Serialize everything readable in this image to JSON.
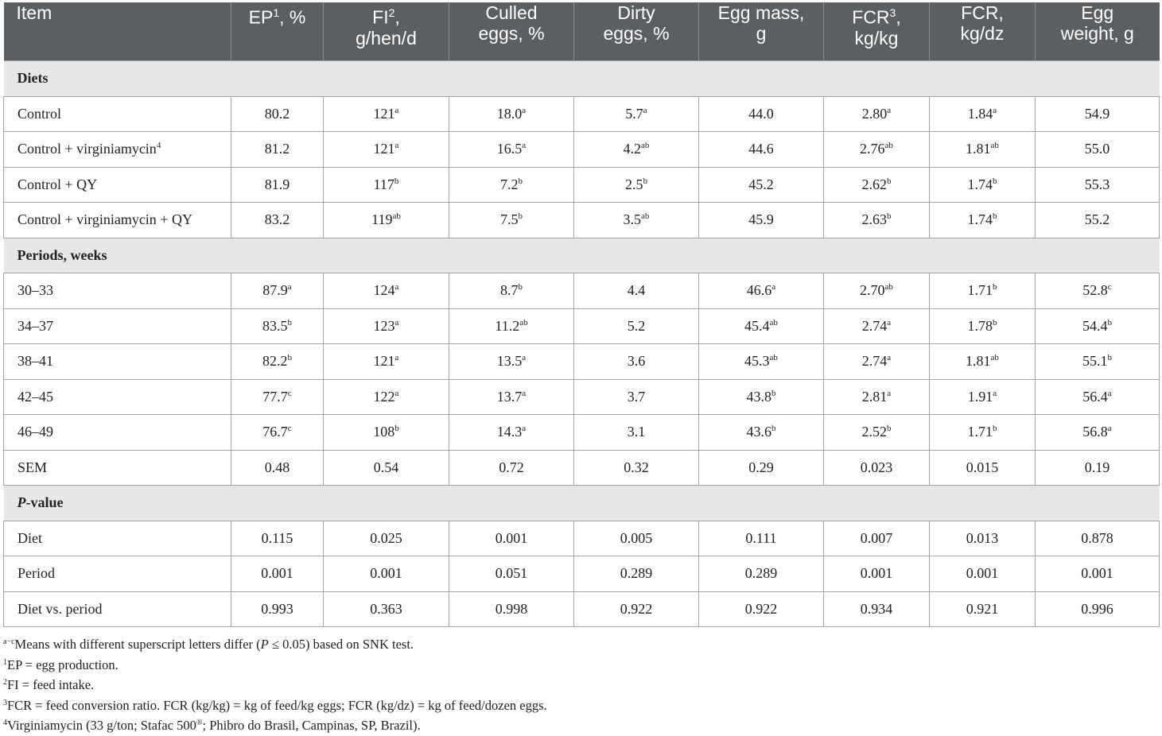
{
  "table": {
    "header": [
      {
        "text": "Item"
      },
      {
        "text": "EP",
        "sup": "1",
        "after": ", %"
      },
      {
        "text": "FI",
        "sup": "2",
        "after": ",",
        "line2": "g/hen/d"
      },
      {
        "text": "Culled",
        "line2": "eggs, %"
      },
      {
        "text": "Dirty",
        "line2": "eggs, %"
      },
      {
        "text": "Egg mass,",
        "line2": "g"
      },
      {
        "text": "FCR",
        "sup": "3",
        "after": ",",
        "line2": "kg/kg"
      },
      {
        "text": "FCR,",
        "line2": "kg/dz"
      },
      {
        "text": "Egg",
        "line2": "weight, g"
      }
    ],
    "sections": [
      {
        "title": {
          "text": "Diets"
        },
        "rows": [
          {
            "label": {
              "text": "Control"
            },
            "cells": [
              [
                "80.2"
              ],
              [
                "121",
                "a"
              ],
              [
                "18.0",
                "a"
              ],
              [
                "5.7",
                "a"
              ],
              [
                "44.0"
              ],
              [
                "2.80",
                "a"
              ],
              [
                "1.84",
                "a"
              ],
              [
                "54.9"
              ]
            ]
          },
          {
            "label": {
              "text": "Control + virginiamycin",
              "sup": "4"
            },
            "cells": [
              [
                "81.2"
              ],
              [
                "121",
                "a"
              ],
              [
                "16.5",
                "a"
              ],
              [
                "4.2",
                "ab"
              ],
              [
                "44.6"
              ],
              [
                "2.76",
                "ab"
              ],
              [
                "1.81",
                "ab"
              ],
              [
                "55.0"
              ]
            ]
          },
          {
            "label": {
              "text": "Control + QY"
            },
            "cells": [
              [
                "81.9"
              ],
              [
                "117",
                "b"
              ],
              [
                "7.2",
                "b"
              ],
              [
                "2.5",
                "b"
              ],
              [
                "45.2"
              ],
              [
                "2.62",
                "b"
              ],
              [
                "1.74",
                "b"
              ],
              [
                "55.3"
              ]
            ]
          },
          {
            "label": {
              "text": "Control + virginiamycin + QY"
            },
            "cells": [
              [
                "83.2"
              ],
              [
                "119",
                "ab"
              ],
              [
                "7.5",
                "b"
              ],
              [
                "3.5",
                "ab"
              ],
              [
                "45.9"
              ],
              [
                "2.63",
                "b"
              ],
              [
                "1.74",
                "b"
              ],
              [
                "55.2"
              ]
            ]
          }
        ]
      },
      {
        "title": {
          "text": "Periods, weeks"
        },
        "rows": [
          {
            "label": {
              "text": "30–33"
            },
            "cells": [
              [
                "87.9",
                "a"
              ],
              [
                "124",
                "a"
              ],
              [
                "8.7",
                "b"
              ],
              [
                "4.4"
              ],
              [
                "46.6",
                "a"
              ],
              [
                "2.70",
                "ab"
              ],
              [
                "1.71",
                "b"
              ],
              [
                "52.8",
                "c"
              ]
            ]
          },
          {
            "label": {
              "text": "34–37"
            },
            "cells": [
              [
                "83.5",
                "b"
              ],
              [
                "123",
                "a"
              ],
              [
                "11.2",
                "ab"
              ],
              [
                "5.2"
              ],
              [
                "45.4",
                "ab"
              ],
              [
                "2.74",
                "a"
              ],
              [
                "1.78",
                "b"
              ],
              [
                "54.4",
                "b"
              ]
            ]
          },
          {
            "label": {
              "text": "38–41"
            },
            "cells": [
              [
                "82.2",
                "b"
              ],
              [
                "121",
                "a"
              ],
              [
                "13.5",
                "a"
              ],
              [
                "3.6"
              ],
              [
                "45.3",
                "ab"
              ],
              [
                "2.74",
                "a"
              ],
              [
                "1.81",
                "ab"
              ],
              [
                "55.1",
                "b"
              ]
            ]
          },
          {
            "label": {
              "text": "42–45"
            },
            "cells": [
              [
                "77.7",
                "c"
              ],
              [
                "122",
                "a"
              ],
              [
                "13.7",
                "a"
              ],
              [
                "3.7"
              ],
              [
                "43.8",
                "b"
              ],
              [
                "2.81",
                "a"
              ],
              [
                "1.91",
                "a"
              ],
              [
                "56.4",
                "a"
              ]
            ]
          },
          {
            "label": {
              "text": "46–49"
            },
            "cells": [
              [
                "76.7",
                "c"
              ],
              [
                "108",
                "b"
              ],
              [
                "14.3",
                "a"
              ],
              [
                "3.1"
              ],
              [
                "43.6",
                "b"
              ],
              [
                "2.52",
                "b"
              ],
              [
                "1.71",
                "b"
              ],
              [
                "56.8",
                "a"
              ]
            ]
          },
          {
            "label": {
              "text": "SEM"
            },
            "cells": [
              [
                "0.48"
              ],
              [
                "0.54"
              ],
              [
                "0.72"
              ],
              [
                "0.32"
              ],
              [
                "0.29"
              ],
              [
                "0.023"
              ],
              [
                "0.015"
              ],
              [
                "0.19"
              ]
            ]
          }
        ]
      },
      {
        "title": {
          "italic": "P",
          "text": "-value"
        },
        "rows": [
          {
            "label": {
              "text": "Diet"
            },
            "cells": [
              [
                "0.115"
              ],
              [
                "0.025"
              ],
              [
                "0.001"
              ],
              [
                "0.005"
              ],
              [
                "0.111"
              ],
              [
                "0.007"
              ],
              [
                "0.013"
              ],
              [
                "0.878"
              ]
            ]
          },
          {
            "label": {
              "text": "Period"
            },
            "cells": [
              [
                "0.001"
              ],
              [
                "0.001"
              ],
              [
                "0.051"
              ],
              [
                "0.289"
              ],
              [
                "0.289"
              ],
              [
                "0.001"
              ],
              [
                "0.001"
              ],
              [
                "0.001"
              ]
            ]
          },
          {
            "label": {
              "text": "Diet vs. period"
            },
            "cells": [
              [
                "0.993"
              ],
              [
                "0.363"
              ],
              [
                "0.998"
              ],
              [
                "0.922"
              ],
              [
                "0.922"
              ],
              [
                "0.934"
              ],
              [
                "0.921"
              ],
              [
                "0.996"
              ]
            ]
          }
        ]
      }
    ]
  },
  "footnotes": [
    {
      "sup": "a−c",
      "parts": [
        "Means with different superscript letters differ (",
        "P",
        " ≤ 0.05) based on SNK test."
      ]
    },
    {
      "sup": "1",
      "parts": [
        "EP = egg production."
      ]
    },
    {
      "sup": "2",
      "parts": [
        "FI = feed intake."
      ]
    },
    {
      "sup": "3",
      "parts": [
        "FCR = feed conversion ratio. FCR (kg/kg) = kg of feed/kg eggs; FCR (kg/dz) = kg of feed/dozen eggs."
      ]
    },
    {
      "sup": "4",
      "parts": [
        "Virginiamycin (33 g/ton; Stafac 500",
        "®",
        "; Phibro do Brasil, Campinas, SP, Brazil)."
      ]
    }
  ]
}
